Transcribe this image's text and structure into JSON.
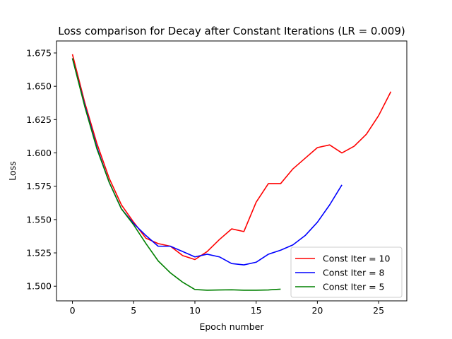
{
  "chart_data": {
    "type": "line",
    "title": "Loss comparison for Decay after Constant Iterations (LR = 0.009)",
    "xlabel": "Epoch number",
    "ylabel": "Loss",
    "xlim": [
      -1.3,
      27.3
    ],
    "ylim": [
      1.489,
      1.684
    ],
    "xticks": [
      0,
      5,
      10,
      15,
      20,
      25
    ],
    "xtick_labels": [
      "0",
      "5",
      "10",
      "15",
      "20",
      "25"
    ],
    "yticks": [
      1.5,
      1.525,
      1.55,
      1.575,
      1.6,
      1.625,
      1.65,
      1.675
    ],
    "ytick_labels": [
      "1.500",
      "1.525",
      "1.550",
      "1.575",
      "1.600",
      "1.625",
      "1.650",
      "1.675"
    ],
    "grid": false,
    "legend_position": "lower-right",
    "series": [
      {
        "name": "Const Iter = 10",
        "color": "#ff0000",
        "x": [
          0,
          1,
          2,
          3,
          4,
          5,
          6,
          7,
          8,
          9,
          10,
          11,
          12,
          13,
          14,
          15,
          16,
          17,
          18,
          19,
          20,
          21,
          22,
          23,
          24,
          25,
          26
        ],
        "y": [
          1.674,
          1.638,
          1.607,
          1.581,
          1.561,
          1.548,
          1.536,
          1.532,
          1.53,
          1.523,
          1.52,
          1.526,
          1.535,
          1.543,
          1.541,
          1.563,
          1.577,
          1.577,
          1.588,
          1.596,
          1.604,
          1.606,
          1.6,
          1.605,
          1.614,
          1.628,
          1.646
        ]
      },
      {
        "name": "Const Iter = 8",
        "color": "#0000ff",
        "x": [
          0,
          1,
          2,
          3,
          4,
          5,
          6,
          7,
          8,
          9,
          10,
          11,
          12,
          13,
          14,
          15,
          16,
          17,
          18,
          19,
          20,
          21,
          22
        ],
        "y": [
          1.671,
          1.636,
          1.604,
          1.578,
          1.558,
          1.547,
          1.538,
          1.53,
          1.53,
          1.526,
          1.522,
          1.524,
          1.522,
          1.517,
          1.516,
          1.518,
          1.524,
          1.527,
          1.531,
          1.538,
          1.548,
          1.561,
          1.576
        ]
      },
      {
        "name": "Const Iter = 5",
        "color": "#008000",
        "x": [
          0,
          1,
          2,
          3,
          4,
          5,
          6,
          7,
          8,
          9,
          10,
          11,
          12,
          13,
          14,
          15,
          16,
          17
        ],
        "y": [
          1.671,
          1.635,
          1.603,
          1.578,
          1.558,
          1.546,
          1.532,
          1.519,
          1.51,
          1.503,
          1.4975,
          1.497,
          1.4972,
          1.4973,
          1.497,
          1.497,
          1.4972,
          1.4978
        ]
      }
    ]
  }
}
